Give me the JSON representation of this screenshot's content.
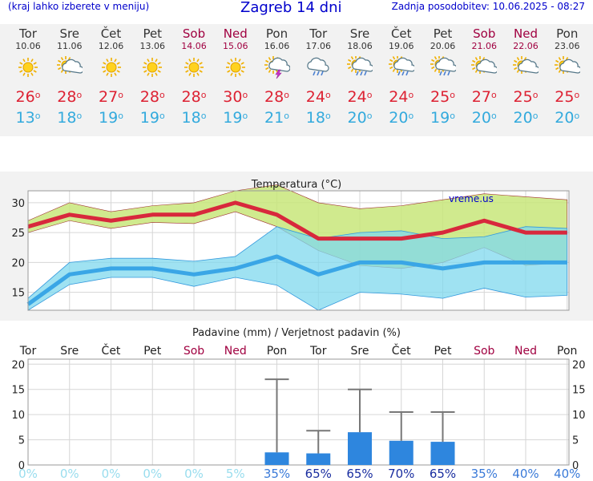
{
  "header": {
    "menu_hint": "(kraj lahko izberete v meniju)",
    "title": "Zagreb 14 dni",
    "updated": "Zadnja posodobitev: 10.06.2025 - 08:27"
  },
  "days": [
    {
      "name": "Tor",
      "date": "10.06",
      "weekend": false,
      "icon": "sun-icon",
      "tmax": "26",
      "tmin": "13"
    },
    {
      "name": "Sre",
      "date": "11.06",
      "weekend": false,
      "icon": "sun-cloud-icon",
      "tmax": "28",
      "tmin": "18"
    },
    {
      "name": "Čet",
      "date": "12.06",
      "weekend": false,
      "icon": "sun-icon",
      "tmax": "27",
      "tmin": "19"
    },
    {
      "name": "Pet",
      "date": "13.06",
      "weekend": false,
      "icon": "sun-icon",
      "tmax": "28",
      "tmin": "19"
    },
    {
      "name": "Sob",
      "date": "14.06",
      "weekend": true,
      "icon": "sun-icon",
      "tmax": "28",
      "tmin": "18"
    },
    {
      "name": "Ned",
      "date": "15.06",
      "weekend": true,
      "icon": "sun-icon",
      "tmax": "30",
      "tmin": "19"
    },
    {
      "name": "Pon",
      "date": "16.06",
      "weekend": false,
      "icon": "thunderstorm-icon",
      "tmax": "28",
      "tmin": "21"
    },
    {
      "name": "Tor",
      "date": "17.06",
      "weekend": false,
      "icon": "rain-cloud-icon",
      "tmax": "24",
      "tmin": "18"
    },
    {
      "name": "Sre",
      "date": "18.06",
      "weekend": false,
      "icon": "sun-rain-icon",
      "tmax": "24",
      "tmin": "20"
    },
    {
      "name": "Čet",
      "date": "19.06",
      "weekend": false,
      "icon": "sun-rain-icon",
      "tmax": "24",
      "tmin": "20"
    },
    {
      "name": "Pet",
      "date": "20.06",
      "weekend": false,
      "icon": "sun-rain-icon",
      "tmax": "25",
      "tmin": "19"
    },
    {
      "name": "Sob",
      "date": "21.06",
      "weekend": true,
      "icon": "sun-cloud-icon",
      "tmax": "27",
      "tmin": "20"
    },
    {
      "name": "Ned",
      "date": "22.06",
      "weekend": true,
      "icon": "sun-cloud-icon",
      "tmax": "25",
      "tmin": "20"
    },
    {
      "name": "Pon",
      "date": "23.06",
      "weekend": false,
      "icon": "sun-cloud-icon",
      "tmax": "25",
      "tmin": "20"
    }
  ],
  "colors": {
    "tmax": "#dd2233",
    "tmin": "#33aadd",
    "weekend": "#a00040",
    "precip_bar": "#2e86de",
    "prob_low": "#99ddee",
    "prob_high": "#1a2ea0",
    "upper_band": "#c8e67a",
    "lower_band": "#7fd8ee",
    "overlap": "#5dc77a"
  },
  "chart_data": [
    {
      "type": "line",
      "title": "Temperatura (°C)",
      "watermark": "vreme.us",
      "categories": [
        "Tor",
        "Sre",
        "Čet",
        "Pet",
        "Sob",
        "Ned",
        "Pon",
        "Tor",
        "Sre",
        "Čet",
        "Pet",
        "Sob",
        "Ned",
        "Pon"
      ],
      "ylim": [
        12,
        32
      ],
      "yticks": [
        15,
        20,
        25,
        30
      ],
      "grid": true,
      "series": [
        {
          "role": "max",
          "values": [
            26,
            28,
            27,
            28,
            28,
            30,
            28,
            24,
            24,
            24,
            25,
            27,
            25,
            25
          ]
        },
        {
          "role": "max-band-high",
          "values": [
            27,
            30,
            28.5,
            29.5,
            30,
            32,
            33,
            30,
            29,
            29.5,
            30.5,
            31.5,
            31,
            30.5
          ]
        },
        {
          "role": "max-band-low",
          "values": [
            25,
            27,
            25.7,
            26.7,
            26.5,
            28.5,
            26,
            22,
            19.5,
            19,
            20,
            22.5,
            19.5,
            20
          ]
        },
        {
          "role": "min",
          "values": [
            13,
            18,
            19,
            19,
            18,
            19,
            21,
            18,
            20,
            20,
            19,
            20,
            20,
            20
          ]
        },
        {
          "role": "min-band-high",
          "values": [
            14,
            20,
            20.7,
            20.7,
            20.2,
            21,
            26,
            24,
            25,
            25.3,
            24,
            24.3,
            26,
            25.7
          ]
        },
        {
          "role": "min-band-low",
          "values": [
            12,
            16.3,
            17.5,
            17.5,
            16,
            17.5,
            16.2,
            12,
            15,
            14.7,
            14,
            15.7,
            14.2,
            14.5
          ]
        }
      ]
    },
    {
      "type": "bar",
      "title": "Padavine (mm) / Verjetnost padavin (%)",
      "categories": [
        "Tor",
        "Sre",
        "Čet",
        "Pet",
        "Sob",
        "Ned",
        "Pon",
        "Tor",
        "Sre",
        "Čet",
        "Pet",
        "Sob",
        "Ned",
        "Pon"
      ],
      "ylim": [
        0,
        21
      ],
      "yticks": [
        0,
        5,
        10,
        15,
        20
      ],
      "grid": true,
      "series": [
        {
          "role": "precip_mm",
          "values": [
            0,
            0,
            0,
            0,
            0,
            0,
            2.5,
            2.3,
            6.5,
            4.8,
            4.6,
            0,
            0,
            0
          ]
        },
        {
          "role": "precip_max_mm",
          "values": [
            0,
            0,
            0,
            0,
            0,
            0,
            17,
            6.8,
            15,
            10.5,
            10.5,
            0,
            0,
            0
          ]
        }
      ],
      "probabilities": [
        "0%",
        "0%",
        "0%",
        "0%",
        "0%",
        "5%",
        "35%",
        "65%",
        "65%",
        "70%",
        "65%",
        "35%",
        "40%",
        "40%"
      ]
    }
  ]
}
